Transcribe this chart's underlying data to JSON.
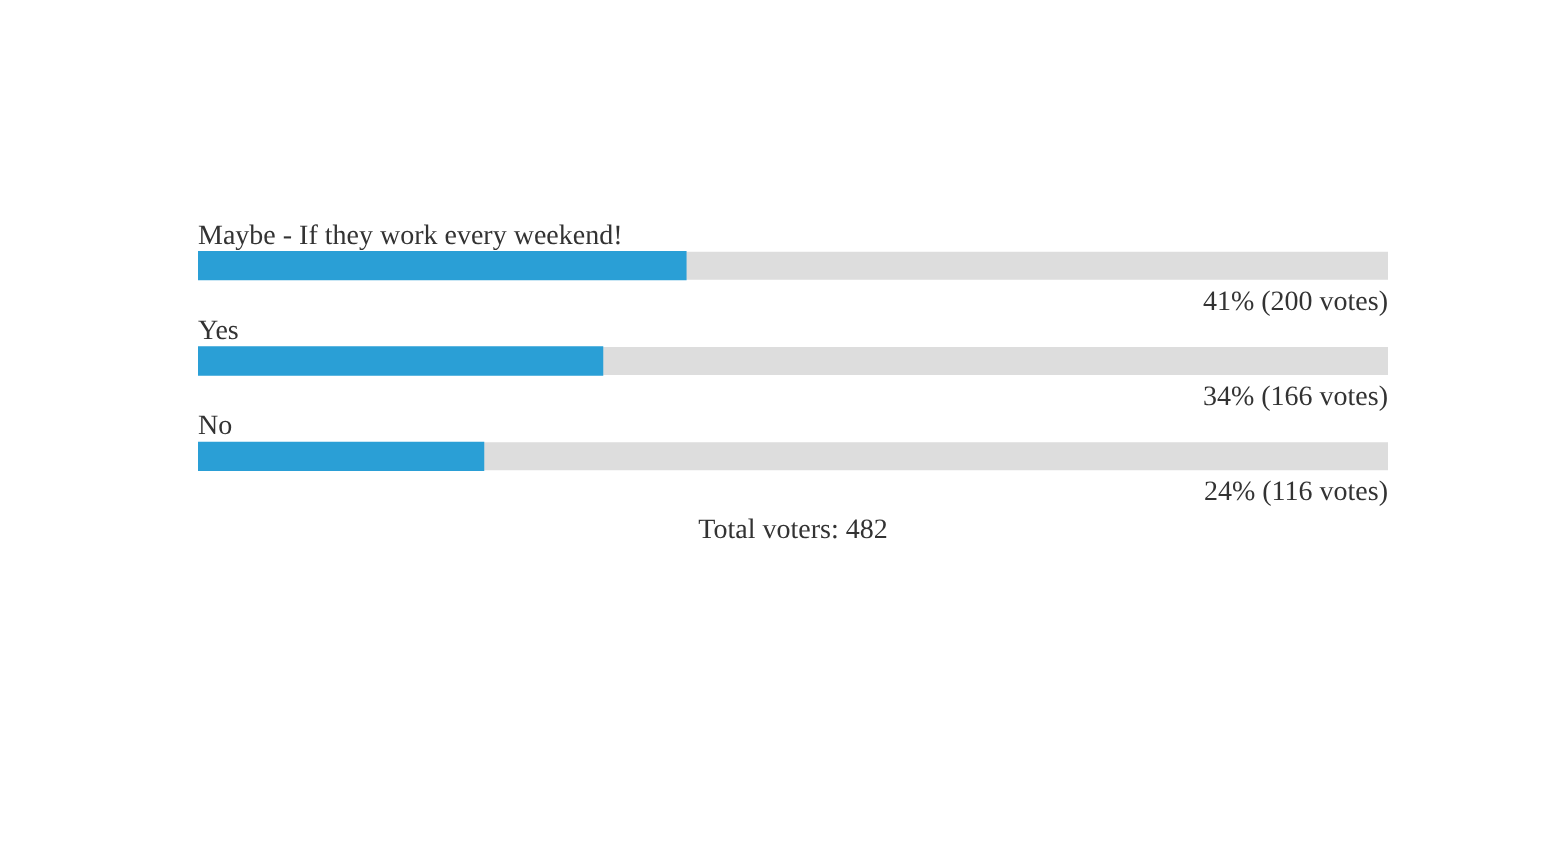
{
  "chart_data": {
    "type": "bar",
    "orientation": "horizontal",
    "categories": [
      "Maybe - If they work every weekend!",
      "Yes",
      "No"
    ],
    "values": [
      41,
      34,
      24
    ],
    "value_labels": [
      "41% (200 votes)",
      "34% (166 votes)",
      "24% (116 votes)"
    ],
    "color": "#2a9fd6",
    "xlim": [
      0,
      100
    ],
    "grid": false,
    "legend": false,
    "annotations": [
      "Total voters: 482"
    ]
  }
}
